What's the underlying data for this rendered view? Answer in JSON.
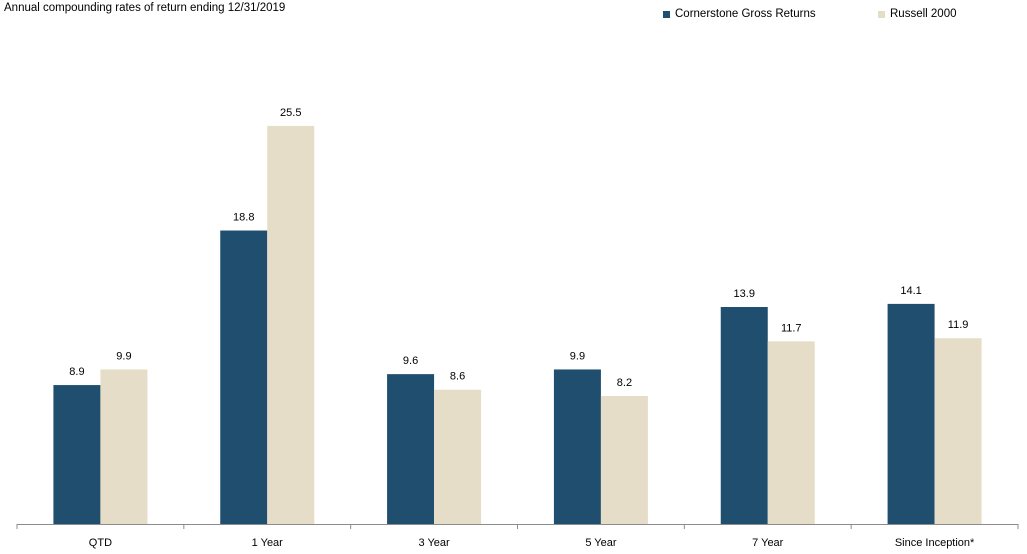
{
  "chart_data": {
    "type": "bar",
    "title": "Annual compounding rates of return ending 12/31/2019",
    "categories": [
      "QTD",
      "1 Year",
      "3 Year",
      "5 Year",
      "7 Year",
      "Since Inception*"
    ],
    "series": [
      {
        "name": "Cornerstone Gross Returns",
        "color": "#1f4e6e",
        "values": [
          8.9,
          18.8,
          9.6,
          9.9,
          13.9,
          14.1
        ]
      },
      {
        "name": "Russell 2000",
        "color": "#e5ddc7",
        "values": [
          9.9,
          25.5,
          8.6,
          8.2,
          11.7,
          11.9
        ]
      }
    ],
    "value_labels": [
      [
        "8.9",
        "18.8",
        "9.6",
        "9.9",
        "13.9",
        "14.1"
      ],
      [
        "9.9",
        "25.5",
        "8.6",
        "8.2",
        "11.7",
        "11.9"
      ]
    ],
    "ylim": [
      0,
      26.2
    ],
    "grid": false,
    "legend_position": "top-right",
    "xlabel": "",
    "ylabel": ""
  }
}
